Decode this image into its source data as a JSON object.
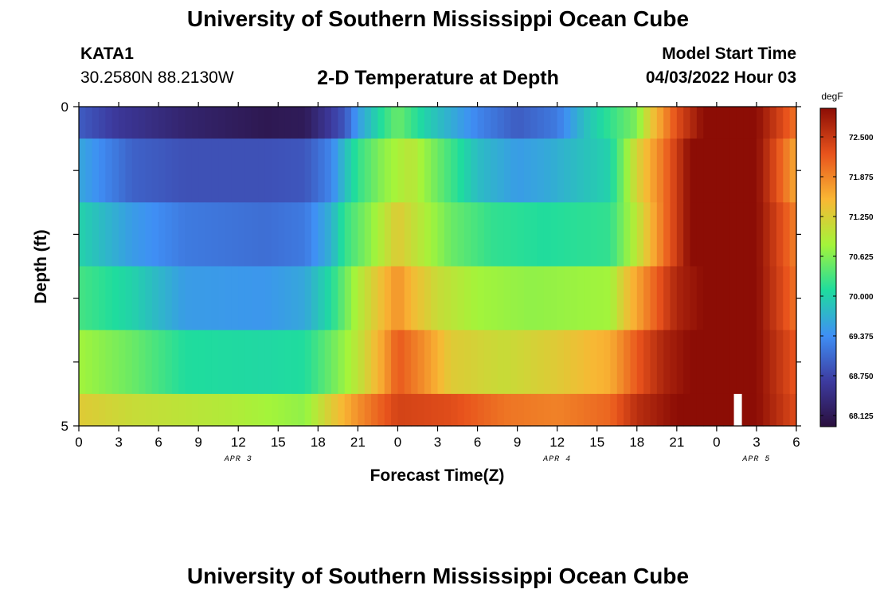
{
  "header": {
    "title": "University of Southern Mississippi Ocean Cube",
    "station_id": "KATA1",
    "coordinates": "30.2580N  88.2130W",
    "model_label": "Model Start Time",
    "model_value": "04/03/2022 Hour 03"
  },
  "footer": {
    "title": "University of Southern Mississippi Ocean Cube"
  },
  "colors": {
    "colormap": [
      "#2a0f3d",
      "#3d3ba0",
      "#3f8ff5",
      "#1fdc9e",
      "#a4f43a",
      "#f9b734",
      "#e8531c",
      "#8c0d05"
    ]
  },
  "chart_data": {
    "type": "heatmap",
    "title": "2-D Temperature at Depth",
    "xlabel": "Forecast Time(Z)",
    "ylabel": "Depth (ft)",
    "x_tick_labels": [
      "0",
      "3",
      "6",
      "9",
      "12",
      "15",
      "18",
      "21",
      "0",
      "3",
      "6",
      "9",
      "12",
      "15",
      "18",
      "21",
      "0",
      "3",
      "6"
    ],
    "date_labels": [
      {
        "label": "APR 3",
        "at_hour": 12
      },
      {
        "label": "APR 4",
        "at_hour": 36
      },
      {
        "label": "APR 5",
        "at_hour": 51
      }
    ],
    "x_range_hours": [
      0,
      54
    ],
    "y_tick_labels": [
      "0",
      "5"
    ],
    "y_range": [
      0,
      5
    ],
    "colorbar": {
      "unit": "degF",
      "min": 67.95,
      "max": 72.95,
      "tick_labels": [
        "72.500",
        "71.875",
        "71.250",
        "70.625",
        "70.000",
        "69.375",
        "68.750",
        "68.125"
      ],
      "tick_values": [
        72.5,
        71.875,
        71.25,
        70.625,
        70.0,
        69.375,
        68.75,
        68.125
      ]
    },
    "depth_bands": [
      {
        "depth_ft": [
          0.0,
          0.5
        ],
        "keypoints": [
          [
            0,
            68.95
          ],
          [
            3,
            68.6
          ],
          [
            8,
            68.3
          ],
          [
            14,
            68.1
          ],
          [
            17,
            68.15
          ],
          [
            20,
            68.9
          ],
          [
            21,
            69.5
          ],
          [
            23,
            70.2
          ],
          [
            24,
            70.5
          ],
          [
            26,
            70.0
          ],
          [
            30,
            69.3
          ],
          [
            33,
            68.95
          ],
          [
            36,
            69.2
          ],
          [
            38,
            69.8
          ],
          [
            42,
            70.6
          ],
          [
            43,
            71.3
          ],
          [
            45,
            72.3
          ],
          [
            47,
            72.95
          ],
          [
            51,
            72.95
          ],
          [
            54,
            72.0
          ]
        ]
      },
      {
        "depth_ft": [
          0.5,
          1.5
        ],
        "keypoints": [
          [
            0,
            69.6
          ],
          [
            4,
            69.0
          ],
          [
            8,
            68.85
          ],
          [
            14,
            68.85
          ],
          [
            17,
            68.9
          ],
          [
            19,
            69.3
          ],
          [
            20,
            69.8
          ],
          [
            21,
            70.2
          ],
          [
            23,
            70.7
          ],
          [
            25,
            71.0
          ],
          [
            27,
            70.5
          ],
          [
            30,
            69.8
          ],
          [
            33,
            69.5
          ],
          [
            35,
            69.6
          ],
          [
            40,
            70.0
          ],
          [
            41,
            70.6
          ],
          [
            42,
            71.2
          ],
          [
            44,
            72.0
          ],
          [
            46,
            72.95
          ],
          [
            51,
            72.95
          ],
          [
            54,
            71.6
          ]
        ]
      },
      {
        "depth_ft": [
          1.5,
          2.5
        ],
        "keypoints": [
          [
            0,
            70.0
          ],
          [
            4,
            69.5
          ],
          [
            8,
            69.2
          ],
          [
            14,
            69.1
          ],
          [
            17,
            69.2
          ],
          [
            19,
            69.7
          ],
          [
            20,
            70.2
          ],
          [
            22,
            70.7
          ],
          [
            23,
            71.0
          ],
          [
            24,
            71.3
          ],
          [
            26,
            70.9
          ],
          [
            28,
            70.5
          ],
          [
            31,
            70.2
          ],
          [
            35,
            70.1
          ],
          [
            40,
            70.2
          ],
          [
            42,
            71.0
          ],
          [
            44,
            72.0
          ],
          [
            46,
            72.95
          ],
          [
            51,
            72.95
          ],
          [
            54,
            71.9
          ]
        ]
      },
      {
        "depth_ft": [
          2.5,
          3.5
        ],
        "keypoints": [
          [
            0,
            70.3
          ],
          [
            4,
            70.0
          ],
          [
            8,
            69.5
          ],
          [
            14,
            69.45
          ],
          [
            17,
            69.6
          ],
          [
            19,
            70.1
          ],
          [
            21,
            70.9
          ],
          [
            22,
            71.2
          ],
          [
            24,
            71.8
          ],
          [
            25,
            71.5
          ],
          [
            27,
            71.1
          ],
          [
            30,
            70.8
          ],
          [
            34,
            70.7
          ],
          [
            40,
            70.8
          ],
          [
            41,
            71.3
          ],
          [
            43,
            72.0
          ],
          [
            45,
            72.7
          ],
          [
            47,
            72.95
          ],
          [
            51,
            72.95
          ],
          [
            54,
            72.0
          ]
        ]
      },
      {
        "depth_ft": [
          3.5,
          4.5
        ],
        "keypoints": [
          [
            0,
            70.8
          ],
          [
            4,
            70.5
          ],
          [
            8,
            70.1
          ],
          [
            14,
            70.05
          ],
          [
            17,
            70.1
          ],
          [
            19,
            70.5
          ],
          [
            21,
            71.0
          ],
          [
            23,
            71.7
          ],
          [
            24,
            72.2
          ],
          [
            26,
            71.8
          ],
          [
            28,
            71.3
          ],
          [
            32,
            71.1
          ],
          [
            36,
            71.3
          ],
          [
            40,
            71.6
          ],
          [
            42,
            72.2
          ],
          [
            44,
            72.7
          ],
          [
            46,
            72.95
          ],
          [
            51,
            72.95
          ],
          [
            54,
            72.2
          ]
        ]
      },
      {
        "depth_ft": [
          4.5,
          5.0
        ],
        "keypoints": [
          [
            0,
            71.3
          ],
          [
            4,
            71.1
          ],
          [
            8,
            71.0
          ],
          [
            12,
            70.9
          ],
          [
            17,
            70.7
          ],
          [
            19,
            71.3
          ],
          [
            21,
            71.8
          ],
          [
            24,
            72.4
          ],
          [
            28,
            72.3
          ],
          [
            32,
            72.0
          ],
          [
            36,
            71.9
          ],
          [
            40,
            72.1
          ],
          [
            42,
            72.6
          ],
          [
            45,
            72.95
          ],
          [
            51,
            72.95
          ],
          [
            54,
            72.3
          ]
        ]
      }
    ],
    "missing_cells": [
      {
        "hours": [
          49.3,
          49.9
        ],
        "depth_ft": [
          4.5,
          5.0
        ]
      }
    ]
  }
}
